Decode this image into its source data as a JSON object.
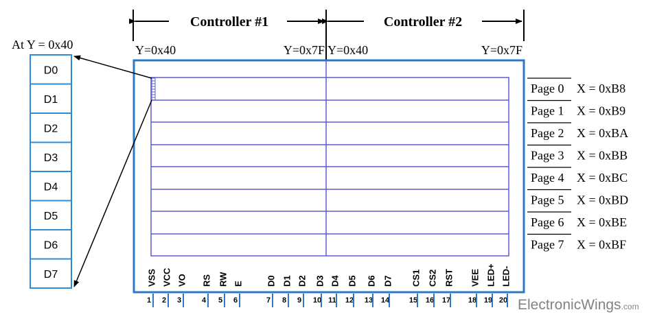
{
  "controllers": [
    {
      "label": "Controller #1",
      "y_start": "Y=0x40",
      "y_end": "Y=0x7F"
    },
    {
      "label": "Controller #2",
      "y_start": "Y=0x40",
      "y_end": "Y=0x7F"
    }
  ],
  "byte_column": {
    "title": "At Y = 0x40",
    "bits": [
      "D0",
      "D1",
      "D2",
      "D3",
      "D4",
      "D5",
      "D6",
      "D7"
    ]
  },
  "pages": [
    {
      "label": "Page 0",
      "addr": "X = 0xB8"
    },
    {
      "label": "Page 1",
      "addr": "X = 0xB9"
    },
    {
      "label": "Page 2",
      "addr": "X = 0xBA"
    },
    {
      "label": "Page 3",
      "addr": "X = 0xBB"
    },
    {
      "label": "Page 4",
      "addr": "X = 0xBC"
    },
    {
      "label": "Page 5",
      "addr": "X = 0xBD"
    },
    {
      "label": "Page 6",
      "addr": "X = 0xBE"
    },
    {
      "label": "Page 7",
      "addr": "X = 0xBF"
    }
  ],
  "pins": [
    {
      "num": "1",
      "name": "VSS"
    },
    {
      "num": "2",
      "name": "VCC"
    },
    {
      "num": "3",
      "name": "VO"
    },
    {
      "num": "4",
      "name": "RS"
    },
    {
      "num": "5",
      "name": "RW"
    },
    {
      "num": "6",
      "name": "E"
    },
    {
      "num": "7",
      "name": "D0"
    },
    {
      "num": "8",
      "name": "D1"
    },
    {
      "num": "9",
      "name": "D2"
    },
    {
      "num": "10",
      "name": "D3"
    },
    {
      "num": "11",
      "name": "D4"
    },
    {
      "num": "12",
      "name": "D5"
    },
    {
      "num": "13",
      "name": "D6"
    },
    {
      "num": "14",
      "name": "D7"
    },
    {
      "num": "15",
      "name": "CS1"
    },
    {
      "num": "16",
      "name": "CS2"
    },
    {
      "num": "17",
      "name": "RST"
    },
    {
      "num": "18",
      "name": "VEE"
    },
    {
      "num": "19",
      "name": "LED+"
    },
    {
      "num": "20",
      "name": "LED-"
    }
  ],
  "watermark": "ElectronicWings",
  "watermark_suffix": ".com",
  "colors": {
    "board": "#2e78c4",
    "grid": "#5b5bd6",
    "bits": "#2e8bd8",
    "ink": "#000000",
    "watermark": "#7f8388"
  }
}
